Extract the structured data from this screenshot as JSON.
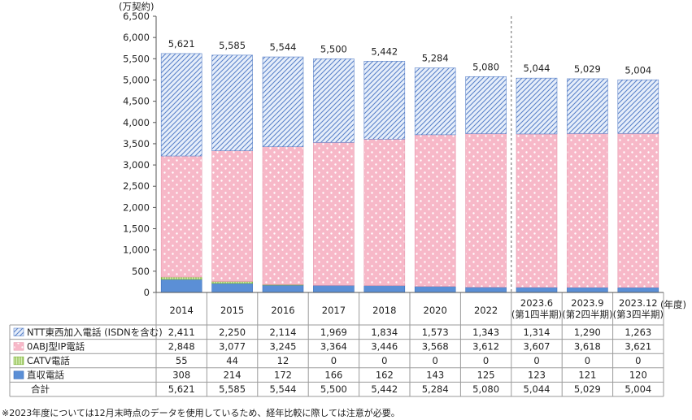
{
  "chart_data": {
    "type": "bar",
    "stacked": true,
    "ylabel": "(万契約)",
    "xunit": "(年度)",
    "ylim": [
      0,
      6500
    ],
    "ytick_step": 500,
    "yticks": [
      "0",
      "500",
      "1,000",
      "1,500",
      "2,000",
      "2,500",
      "3,000",
      "3,500",
      "4,000",
      "4,500",
      "5,000",
      "5,500",
      "6,000",
      "6,500"
    ],
    "categories": [
      "2014",
      "2015",
      "2016",
      "2017",
      "2018",
      "2020",
      "2022",
      "2023.6\n(第1四半期)",
      "2023.9\n(第2四半期)",
      "2023.12\n(第3四半期)"
    ],
    "category_lines": [
      [
        "2014"
      ],
      [
        "2015"
      ],
      [
        "2016"
      ],
      [
        "2017"
      ],
      [
        "2018"
      ],
      [
        "2020"
      ],
      [
        "2022"
      ],
      [
        "2023.6",
        "(第1四半期)"
      ],
      [
        "2023.9",
        "(第2四半期)"
      ],
      [
        "2023.12",
        "(第3四半期)"
      ]
    ],
    "divider_after_index": 6,
    "series": [
      {
        "name": "直収電話",
        "color": "#5b8fd6",
        "pattern": "solid",
        "values": [
          308,
          214,
          172,
          166,
          162,
          143,
          125,
          123,
          121,
          120
        ]
      },
      {
        "name": "CATV電話",
        "color": "#a9d46b",
        "pattern": "vlines",
        "values": [
          55,
          44,
          12,
          0,
          0,
          0,
          0,
          0,
          0,
          0
        ]
      },
      {
        "name": "0ABJ型IP電話",
        "color": "#f7b8c8",
        "pattern": "dots",
        "values": [
          2848,
          3077,
          3245,
          3364,
          3446,
          3568,
          3612,
          3607,
          3618,
          3621
        ]
      },
      {
        "name": "NTT東西加入電話 (ISDNを含む)",
        "color": "#8fb0e0",
        "pattern": "hatch",
        "values": [
          2411,
          2250,
          2114,
          1969,
          1834,
          1573,
          1343,
          1314,
          1290,
          1263
        ]
      }
    ],
    "totals": [
      5621,
      5585,
      5544,
      5500,
      5442,
      5284,
      5080,
      5044,
      5029,
      5004
    ],
    "total_labels": [
      "5,621",
      "5,585",
      "5,544",
      "5,500",
      "5,442",
      "5,284",
      "5,080",
      "5,044",
      "5,029",
      "5,004"
    ],
    "table": {
      "rows": [
        {
          "label": "NTT東西加入電話 (ISDNを含む)",
          "pattern": "hatch",
          "values": [
            "2,411",
            "2,250",
            "2,114",
            "1,969",
            "1,834",
            "1,573",
            "1,343",
            "1,314",
            "1,290",
            "1,263"
          ]
        },
        {
          "label": "0ABJ型IP電話",
          "pattern": "dots",
          "values": [
            "2,848",
            "3,077",
            "3,245",
            "3,364",
            "3,446",
            "3,568",
            "3,612",
            "3,607",
            "3,618",
            "3,621"
          ]
        },
        {
          "label": "CATV電話",
          "pattern": "vlines",
          "values": [
            "55",
            "44",
            "12",
            "0",
            "0",
            "0",
            "0",
            "0",
            "0",
            "0"
          ]
        },
        {
          "label": "直収電話",
          "pattern": "solid",
          "values": [
            "308",
            "214",
            "172",
            "166",
            "162",
            "143",
            "125",
            "123",
            "121",
            "120"
          ]
        },
        {
          "label": "合計",
          "pattern": "none",
          "values": [
            "5,621",
            "5,585",
            "5,544",
            "5,500",
            "5,442",
            "5,284",
            "5,080",
            "5,044",
            "5,029",
            "5,004"
          ]
        }
      ]
    },
    "footnote": "※2023年度については12月末時点のデータを使用しているため、経年比較に際しては注意が必要。"
  }
}
